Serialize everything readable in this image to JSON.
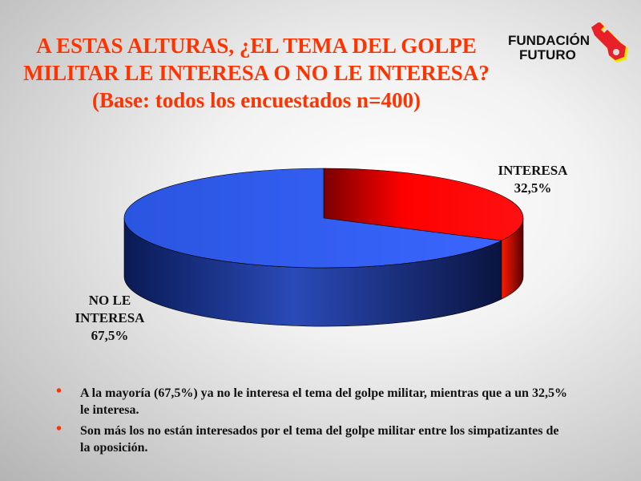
{
  "title": [
    "A ESTAS ALTURAS, ¿EL TEMA DEL GOLPE",
    "MILITAR LE INTERESA O NO LE INTERESA?",
    "(Base: todos los encuestados n=400)"
  ],
  "logo": {
    "line1": "FUNDACIÓN",
    "line2": "FUTURO",
    "icon": "key-icon"
  },
  "chart_data": {
    "type": "pie",
    "style": "3d",
    "slices": [
      {
        "label": "INTERESA",
        "value": 32.5,
        "display": "32,5%",
        "color": "#ff0000"
      },
      {
        "label": "NO LE INTERESA",
        "label_lines": [
          "NO LE",
          "INTERESA"
        ],
        "value": 67.5,
        "display": "67,5%",
        "color": "#3366ff"
      }
    ]
  },
  "bullets": [
    "A la mayoría (67,5%) ya no le interesa el tema del golpe militar, mientras que a un 32,5% le interesa.",
    "Son más los no están interesados por el tema del golpe militar entre los simpatizantes de la oposición."
  ],
  "colors": {
    "title": "#ff3300",
    "bullet": "#ff3300"
  }
}
